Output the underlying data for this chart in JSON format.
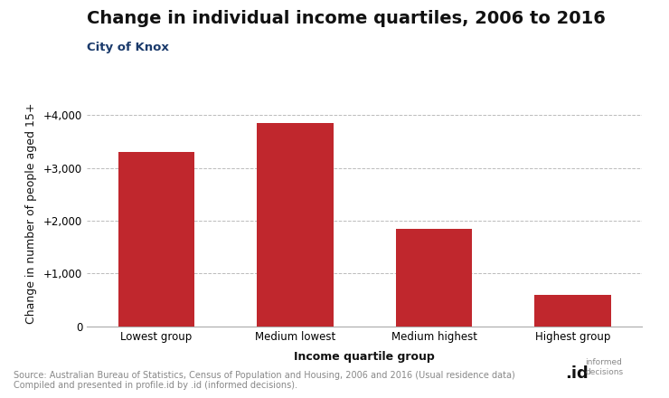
{
  "title": "Change in individual income quartiles, 2006 to 2016",
  "subtitle": "City of Knox",
  "categories": [
    "Lowest group",
    "Medium lowest",
    "Medium highest",
    "Highest group"
  ],
  "values": [
    3300,
    3850,
    1850,
    600
  ],
  "bar_color": "#C0272D",
  "ylabel": "Change in number of people aged 15+",
  "xlabel": "Income quartile group",
  "ylim": [
    0,
    4300
  ],
  "yticks": [
    0,
    1000,
    2000,
    3000,
    4000
  ],
  "ytick_labels": [
    "0",
    "+1,000",
    "+2,000",
    "+3,000",
    "+4,000"
  ],
  "source_text": "Source: Australian Bureau of Statistics, Census of Population and Housing, 2006 and 2016 (Usual residence data)\nCompiled and presented in profile.id by .id (informed decisions).",
  "background_color": "#ffffff",
  "grid_color": "#bbbbbb",
  "title_fontsize": 14,
  "subtitle_fontsize": 9.5,
  "axis_label_fontsize": 9,
  "tick_fontsize": 8.5,
  "source_fontsize": 7,
  "subtitle_color": "#1a3a6b",
  "title_color": "#111111",
  "source_color": "#888888"
}
